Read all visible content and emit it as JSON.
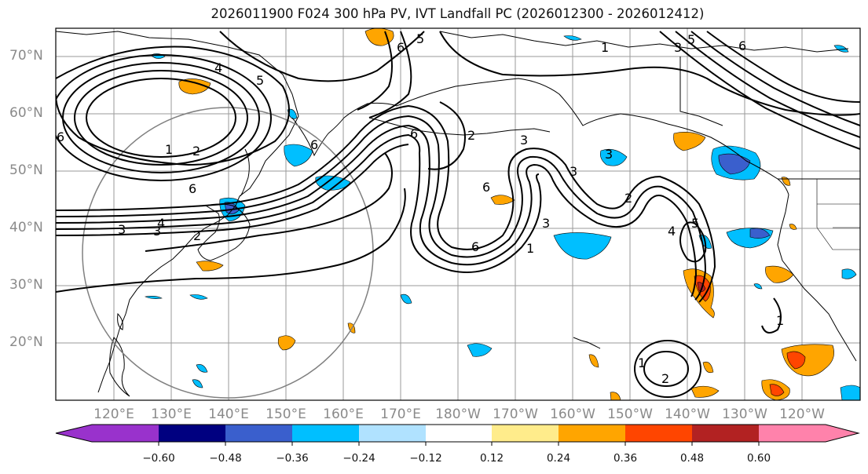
{
  "title": "2026011900 F024 300 hPa PV, IVT Landfall PC (2026012300 - 2026012412)",
  "lat_labels": [
    "70°N",
    "60°N",
    "50°N",
    "40°N",
    "30°N",
    "20°N"
  ],
  "lon_labels": [
    "120°E",
    "130°E",
    "140°E",
    "150°E",
    "160°E",
    "170°E",
    "180°W",
    "170°W",
    "160°W",
    "150°W",
    "140°W",
    "130°W",
    "120°W"
  ],
  "colorbar": {
    "ticks": [
      "−0.60",
      "−0.48",
      "−0.36",
      "−0.24",
      "−0.12",
      "0.12",
      "0.24",
      "0.36",
      "0.48",
      "0.60"
    ],
    "colors": [
      "#9932cc",
      "#000080",
      "#3a5fcd",
      "#00bfff",
      "#b0e2ff",
      "#ffffff",
      "#ffec8b",
      "#ffa500",
      "#ff4500",
      "#b22222",
      "#ff82ab"
    ]
  },
  "contour_labels": [
    "1",
    "2",
    "3",
    "4",
    "5",
    "6"
  ],
  "colors": {
    "land_outline": "#000000",
    "grid": "#9a9a9a",
    "contour": "#000000",
    "circle": "#808080"
  }
}
